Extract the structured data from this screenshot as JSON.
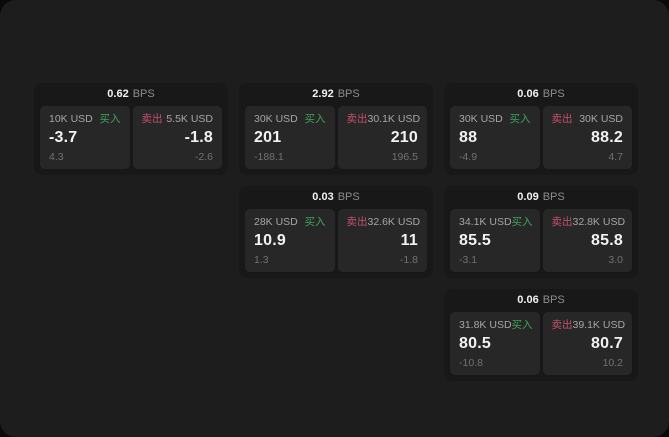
{
  "colors": {
    "page_bg": "#0a0a0a",
    "surface": "#1d1d1e",
    "card_bg": "#181818",
    "panel_bg": "#272727",
    "text_primary": "#f2f2f2",
    "text_label": "#a6a6a6",
    "text_muted": "#717171",
    "text_unit": "#8d8d8d",
    "buy_green": "#41a35c",
    "sell_red": "#c5506b"
  },
  "columns": [
    {
      "cards": [
        {
          "bps_value": "0.62",
          "bps_unit": "BPS",
          "buy": {
            "amount": "10K USD",
            "side_label": "买入",
            "price": "-3.7",
            "delta": "4.3"
          },
          "sell": {
            "side_label": "卖出",
            "amount": "5.5K USD",
            "price": "-1.8",
            "delta": "-2.6"
          }
        }
      ]
    },
    {
      "cards": [
        {
          "bps_value": "2.92",
          "bps_unit": "BPS",
          "buy": {
            "amount": "30K USD",
            "side_label": "买入",
            "price": "201",
            "delta": "-188.1"
          },
          "sell": {
            "side_label": "卖出",
            "amount": "30.1K USD",
            "price": "210",
            "delta": "196.5"
          }
        },
        {
          "bps_value": "0.03",
          "bps_unit": "BPS",
          "buy": {
            "amount": "28K USD",
            "side_label": "买入",
            "price": "10.9",
            "delta": "1.3"
          },
          "sell": {
            "side_label": "卖出",
            "amount": "32.6K USD",
            "price": "11",
            "delta": "-1.8"
          }
        }
      ]
    },
    {
      "cards": [
        {
          "bps_value": "0.06",
          "bps_unit": "BPS",
          "buy": {
            "amount": "30K USD",
            "side_label": "买入",
            "price": "88",
            "delta": "-4.9"
          },
          "sell": {
            "side_label": "卖出",
            "amount": "30K USD",
            "price": "88.2",
            "delta": "4.7"
          }
        },
        {
          "bps_value": "0.09",
          "bps_unit": "BPS",
          "buy": {
            "amount": "34.1K USD",
            "side_label": "买入",
            "price": "85.5",
            "delta": "-3.1"
          },
          "sell": {
            "side_label": "卖出",
            "amount": "32.8K USD",
            "price": "85.8",
            "delta": "3.0"
          }
        },
        {
          "bps_value": "0.06",
          "bps_unit": "BPS",
          "buy": {
            "amount": "31.8K USD",
            "side_label": "买入",
            "price": "80.5",
            "delta": "-10.8"
          },
          "sell": {
            "side_label": "卖出",
            "amount": "39.1K USD",
            "price": "80.7",
            "delta": "10.2"
          }
        }
      ]
    }
  ]
}
